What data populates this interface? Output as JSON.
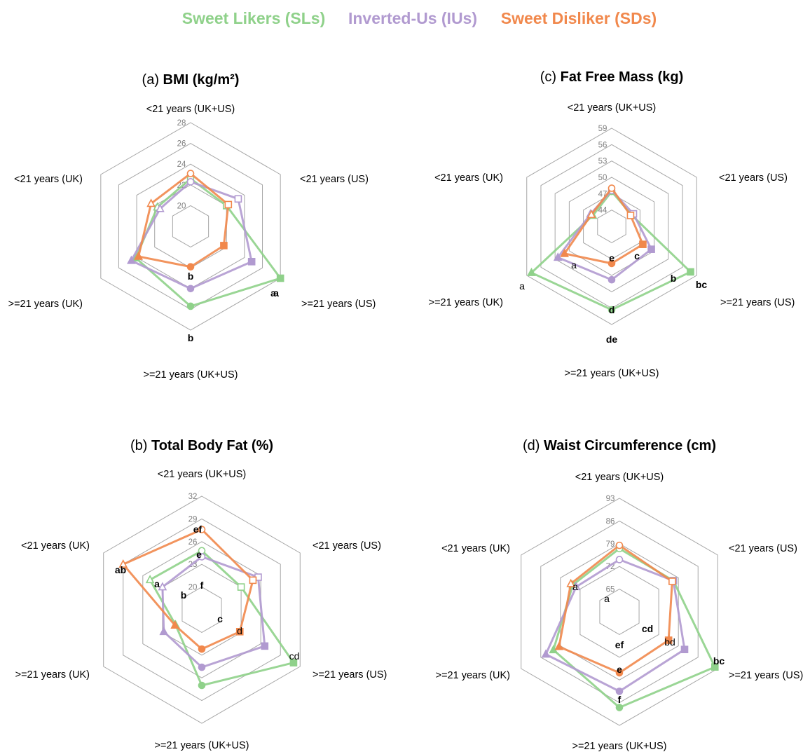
{
  "legend": {
    "items": [
      {
        "label": "Sweet Likers (SLs)",
        "color": "#8fd18a"
      },
      {
        "label": "Inverted-Us (IUs)",
        "color": "#b19ad0"
      },
      {
        "label": "Sweet Disliker (SDs)",
        "color": "#f1884c"
      }
    ]
  },
  "chart_data": [
    {
      "type": "radar",
      "panel": "(a)",
      "title": "BMI (kg/m²)",
      "axes": [
        "<21 years (UK+US)",
        "<21 years (US)",
        ">=21 years (US)",
        ">=21 years (UK+US)",
        ">=21 years (UK)",
        "<21 years (UK)"
      ],
      "ticks": [
        20,
        22,
        24,
        26,
        28
      ],
      "range": [
        18,
        28
      ],
      "series": [
        {
          "name": "Sweet Likers (SLs)",
          "values": [
            22.6,
            22.0,
            28.0,
            25.7,
            24.1,
            21.7
          ]
        },
        {
          "name": "Inverted-Us (IUs)",
          "values": [
            22.3,
            23.3,
            24.8,
            24.0,
            24.6,
            21.4
          ]
        },
        {
          "name": "Sweet Disliker (SDs)",
          "values": [
            23.1,
            22.2,
            21.7,
            21.9,
            23.8,
            22.4
          ]
        }
      ],
      "annotations": [
        {
          "text": "a",
          "axis": 2,
          "bold": true
        },
        {
          "text": "a",
          "axis": 2,
          "bold": true
        },
        {
          "text": "b",
          "axis": 3,
          "bold": true
        },
        {
          "text": "b",
          "axis": 3,
          "bold": true
        }
      ]
    },
    {
      "type": "radar",
      "panel": "(c)",
      "title": "Fat Free Mass (kg)",
      "axes": [
        "<21 years (UK+US)",
        "<21 years (US)",
        ">=21 years (US)",
        ">=21 years (UK+US)",
        ">=21 years (UK)",
        "<21 years (UK)"
      ],
      "ticks": [
        44,
        47,
        50,
        53,
        56,
        59
      ],
      "range": [
        41,
        59
      ],
      "series": [
        {
          "name": "Sweet Likers (SLs)",
          "values": [
            47.4,
            45.2,
            57.7,
            56.3,
            58.0,
            45.0
          ]
        },
        {
          "name": "Inverted-Us (IUs)",
          "values": [
            47.6,
            45.6,
            49.4,
            50.8,
            52.4,
            45.5
          ]
        },
        {
          "name": "Sweet Disliker (SDs)",
          "values": [
            48.0,
            45.0,
            47.6,
            47.8,
            51.0,
            45.3
          ]
        }
      ],
      "annotations": [
        {
          "text": "c",
          "axis": 2,
          "bold": true
        },
        {
          "text": "b",
          "axis": 2,
          "bold": true
        },
        {
          "text": "bc",
          "axis": 2,
          "bold": true
        },
        {
          "text": "e",
          "axis": 3,
          "bold": true
        },
        {
          "text": "d",
          "axis": 3,
          "bold": true
        },
        {
          "text": "de",
          "axis": 3,
          "bold": true
        },
        {
          "text": "a",
          "axis": 4,
          "bold": false
        },
        {
          "text": "a",
          "axis": 4,
          "bold": false
        }
      ]
    },
    {
      "type": "radar",
      "panel": "(b)",
      "title": "Total Body Fat (%)",
      "axes": [
        "<21 years (UK+US)",
        "<21 years (US)",
        ">=21 years (US)",
        ">=21 years (UK+US)",
        ">=21 years (UK)",
        "<21 years (UK)"
      ],
      "ticks": [
        20,
        23,
        26,
        29,
        32
      ],
      "range": [
        17,
        32
      ],
      "series": [
        {
          "name": "Sweet Likers (SLs)",
          "values": [
            24.8,
            23.0,
            31.0,
            27.0,
            21.0,
            24.9
          ]
        },
        {
          "name": "Inverted-Us (IUs)",
          "values": [
            24.0,
            25.6,
            26.6,
            24.6,
            22.8,
            23.0
          ]
        },
        {
          "name": "Sweet Disliker (SDs)",
          "values": [
            27.6,
            24.8,
            22.8,
            22.2,
            21.1,
            29.0
          ]
        }
      ],
      "annotations": [
        {
          "text": "ef",
          "axis": 0,
          "bold": true
        },
        {
          "text": "e",
          "axis": 0,
          "bold": true
        },
        {
          "text": "f",
          "axis": 0,
          "bold": true
        },
        {
          "text": "c",
          "axis": 2,
          "bold": true
        },
        {
          "text": "d",
          "axis": 2,
          "bold": false
        },
        {
          "text": "cd",
          "axis": 2,
          "bold": false
        },
        {
          "text": "ab",
          "axis": 5,
          "bold": true
        },
        {
          "text": "a",
          "axis": 5,
          "bold": true
        },
        {
          "text": "b",
          "axis": 5,
          "bold": true
        }
      ]
    },
    {
      "type": "radar",
      "panel": "(d)",
      "title": "Waist Circumference (cm)",
      "axes": [
        "<21 years (UK+US)",
        "<21 years (US)",
        ">=21 years (US)",
        ">=21 years (UK+US)",
        ">=21 years (UK)",
        "<21 years (UK)"
      ],
      "ticks": [
        65,
        72,
        79,
        86,
        93
      ],
      "range": [
        58,
        93
      ],
      "series": [
        {
          "name": "Sweet Likers (SLs)",
          "values": [
            77.5,
            77.2,
            92.0,
            87.5,
            81.5,
            74.6
          ]
        },
        {
          "name": "Inverted-Us (IUs)",
          "values": [
            74.1,
            77.2,
            81.2,
            82.5,
            84.2,
            73.4
          ]
        },
        {
          "name": "Sweet Disliker (SDs)",
          "values": [
            78.5,
            76.8,
            75.5,
            76.8,
            79.5,
            75.3
          ]
        }
      ],
      "annotations": [
        {
          "text": "cd",
          "axis": 2,
          "bold": true
        },
        {
          "text": "bd",
          "axis": 2,
          "bold": false
        },
        {
          "text": "bc",
          "axis": 2,
          "bold": true
        },
        {
          "text": "ef",
          "axis": 3,
          "bold": true
        },
        {
          "text": "e",
          "axis": 3,
          "bold": true
        },
        {
          "text": "f",
          "axis": 3,
          "bold": true
        },
        {
          "text": "a",
          "axis": 5,
          "bold": false
        },
        {
          "text": "a",
          "axis": 5,
          "bold": false
        }
      ]
    }
  ]
}
